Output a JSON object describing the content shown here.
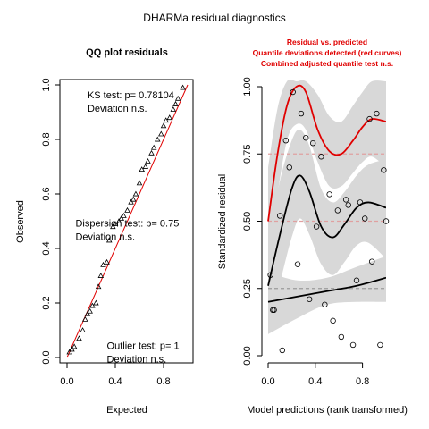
{
  "main_title": "DHARMa residual diagnostics",
  "chart_data": [
    {
      "type": "scatter",
      "title": "QQ plot residuals",
      "xlabel": "Expected",
      "ylabel": "Observed",
      "xlim": [
        0,
        1
      ],
      "ylim": [
        0,
        1
      ],
      "xticks": [
        "0.0",
        "0.4",
        "0.8"
      ],
      "yticks": [
        "0.0",
        "0.2",
        "0.4",
        "0.6",
        "0.8",
        "1.0"
      ],
      "reference_line": {
        "from": [
          0,
          0
        ],
        "to": [
          1,
          1
        ],
        "color": "#e00000"
      },
      "marker": "triangle",
      "points": [
        [
          0.02,
          0.02
        ],
        [
          0.04,
          0.03
        ],
        [
          0.06,
          0.04
        ],
        [
          0.1,
          0.07
        ],
        [
          0.13,
          0.1
        ],
        [
          0.15,
          0.14
        ],
        [
          0.17,
          0.16
        ],
        [
          0.19,
          0.17
        ],
        [
          0.21,
          0.19
        ],
        [
          0.24,
          0.2
        ],
        [
          0.26,
          0.26
        ],
        [
          0.28,
          0.3
        ],
        [
          0.3,
          0.34
        ],
        [
          0.33,
          0.35
        ],
        [
          0.35,
          0.43
        ],
        [
          0.38,
          0.48
        ],
        [
          0.4,
          0.49
        ],
        [
          0.43,
          0.5
        ],
        [
          0.45,
          0.51
        ],
        [
          0.47,
          0.52
        ],
        [
          0.5,
          0.54
        ],
        [
          0.53,
          0.57
        ],
        [
          0.55,
          0.58
        ],
        [
          0.57,
          0.6
        ],
        [
          0.6,
          0.64
        ],
        [
          0.62,
          0.69
        ],
        [
          0.65,
          0.7
        ],
        [
          0.67,
          0.72
        ],
        [
          0.7,
          0.75
        ],
        [
          0.72,
          0.77
        ],
        [
          0.75,
          0.8
        ],
        [
          0.78,
          0.82
        ],
        [
          0.8,
          0.85
        ],
        [
          0.82,
          0.87
        ],
        [
          0.85,
          0.88
        ],
        [
          0.88,
          0.91
        ],
        [
          0.9,
          0.93
        ],
        [
          0.92,
          0.95
        ],
        [
          0.96,
          0.99
        ]
      ],
      "annotations": [
        {
          "lines": [
            "KS test: p= 0.78104",
            "Deviation  n.s."
          ],
          "at": [
            0.17,
            0.99
          ]
        },
        {
          "lines": [
            "Dispersion test: p= 0.75",
            "Deviation  n.s."
          ],
          "at": [
            0.07,
            0.52
          ]
        },
        {
          "lines": [
            "Outlier test: p= 1",
            "Deviation  n.s."
          ],
          "at": [
            0.33,
            0.07
          ]
        }
      ]
    },
    {
      "type": "scatter",
      "title_lines": [
        "Residual vs. predicted",
        "Quantile deviations detected (red curves)",
        "Combined adjusted quantile test n.s."
      ],
      "title_color": "#e00000",
      "xlabel": "Model predictions (rank transformed)",
      "ylabel": "Standardized residual",
      "xlim": [
        0,
        1
      ],
      "ylim": [
        0,
        1
      ],
      "xticks": [
        "0.0",
        "0.4",
        "0.8"
      ],
      "yticks": [
        "0.00",
        "0.25",
        "0.50",
        "0.75",
        "1.00"
      ],
      "reference_lines": [
        0.25,
        0.5,
        0.75
      ],
      "marker": "circle",
      "points": [
        [
          0.02,
          0.3
        ],
        [
          0.04,
          0.17
        ],
        [
          0.05,
          0.17
        ],
        [
          0.1,
          0.52
        ],
        [
          0.12,
          0.02
        ],
        [
          0.15,
          0.8
        ],
        [
          0.18,
          0.7
        ],
        [
          0.21,
          0.98
        ],
        [
          0.25,
          0.34
        ],
        [
          0.28,
          0.9
        ],
        [
          0.32,
          0.81
        ],
        [
          0.35,
          0.21
        ],
        [
          0.38,
          0.79
        ],
        [
          0.41,
          0.48
        ],
        [
          0.45,
          0.74
        ],
        [
          0.48,
          0.19
        ],
        [
          0.52,
          0.6
        ],
        [
          0.55,
          0.13
        ],
        [
          0.59,
          0.54
        ],
        [
          0.62,
          0.07
        ],
        [
          0.66,
          0.58
        ],
        [
          0.68,
          0.56
        ],
        [
          0.72,
          0.04
        ],
        [
          0.75,
          0.28
        ],
        [
          0.78,
          0.57
        ],
        [
          0.82,
          0.51
        ],
        [
          0.86,
          0.88
        ],
        [
          0.88,
          0.35
        ],
        [
          0.92,
          0.9
        ],
        [
          0.95,
          0.04
        ],
        [
          0.98,
          0.69
        ],
        [
          1.0,
          0.5
        ]
      ],
      "quantile_curves": [
        {
          "quantile": 0.25,
          "color": "#000000",
          "line": [
            [
              0.0,
              0.2
            ],
            [
              0.25,
              0.22
            ],
            [
              0.5,
              0.24
            ],
            [
              0.75,
              0.26
            ],
            [
              1.0,
              0.29
            ]
          ],
          "band_upper": [
            [
              0.0,
              0.31
            ],
            [
              0.25,
              0.28
            ],
            [
              0.5,
              0.29
            ],
            [
              0.75,
              0.33
            ],
            [
              1.0,
              0.37
            ]
          ],
          "band_lower": [
            [
              0.0,
              0.08
            ],
            [
              0.25,
              0.14
            ],
            [
              0.5,
              0.19
            ],
            [
              0.75,
              0.2
            ],
            [
              1.0,
              0.2
            ]
          ]
        },
        {
          "quantile": 0.5,
          "color": "#000000",
          "line": [
            [
              0.0,
              0.26
            ],
            [
              0.1,
              0.45
            ],
            [
              0.2,
              0.62
            ],
            [
              0.27,
              0.67
            ],
            [
              0.35,
              0.61
            ],
            [
              0.45,
              0.48
            ],
            [
              0.55,
              0.44
            ],
            [
              0.65,
              0.49
            ],
            [
              0.75,
              0.55
            ],
            [
              0.85,
              0.57
            ],
            [
              1.0,
              0.55
            ]
          ],
          "band_upper": [
            [
              0.0,
              0.42
            ],
            [
              0.1,
              0.65
            ],
            [
              0.2,
              0.8
            ],
            [
              0.27,
              0.84
            ],
            [
              0.35,
              0.78
            ],
            [
              0.45,
              0.62
            ],
            [
              0.55,
              0.57
            ],
            [
              0.65,
              0.61
            ],
            [
              0.75,
              0.67
            ],
            [
              0.85,
              0.71
            ],
            [
              1.0,
              0.73
            ]
          ],
          "band_lower": [
            [
              0.0,
              0.1
            ],
            [
              0.1,
              0.27
            ],
            [
              0.2,
              0.44
            ],
            [
              0.27,
              0.51
            ],
            [
              0.35,
              0.45
            ],
            [
              0.45,
              0.34
            ],
            [
              0.55,
              0.3
            ],
            [
              0.65,
              0.35
            ],
            [
              0.75,
              0.41
            ],
            [
              0.85,
              0.42
            ],
            [
              1.0,
              0.36
            ]
          ]
        },
        {
          "quantile": 0.75,
          "color": "#e00000",
          "line": [
            [
              0.0,
              0.5
            ],
            [
              0.08,
              0.75
            ],
            [
              0.16,
              0.93
            ],
            [
              0.24,
              1.0
            ],
            [
              0.32,
              0.98
            ],
            [
              0.42,
              0.84
            ],
            [
              0.52,
              0.76
            ],
            [
              0.62,
              0.75
            ],
            [
              0.72,
              0.8
            ],
            [
              0.8,
              0.85
            ],
            [
              0.88,
              0.88
            ],
            [
              1.0,
              0.87
            ]
          ],
          "band_upper": [
            [
              0.0,
              0.7
            ],
            [
              0.08,
              0.92
            ],
            [
              0.16,
              1.02
            ],
            [
              0.24,
              1.02
            ],
            [
              0.32,
              1.02
            ],
            [
              0.42,
              0.97
            ],
            [
              0.52,
              0.89
            ],
            [
              0.62,
              0.87
            ],
            [
              0.72,
              0.93
            ],
            [
              0.8,
              0.98
            ],
            [
              0.88,
              1.02
            ],
            [
              1.0,
              1.02
            ]
          ],
          "band_lower": [
            [
              0.0,
              0.33
            ],
            [
              0.08,
              0.6
            ],
            [
              0.16,
              0.8
            ],
            [
              0.24,
              0.86
            ],
            [
              0.32,
              0.84
            ],
            [
              0.42,
              0.72
            ],
            [
              0.52,
              0.63
            ],
            [
              0.62,
              0.63
            ],
            [
              0.72,
              0.68
            ],
            [
              0.8,
              0.72
            ],
            [
              0.88,
              0.74
            ],
            [
              1.0,
              0.7
            ]
          ]
        }
      ]
    }
  ]
}
